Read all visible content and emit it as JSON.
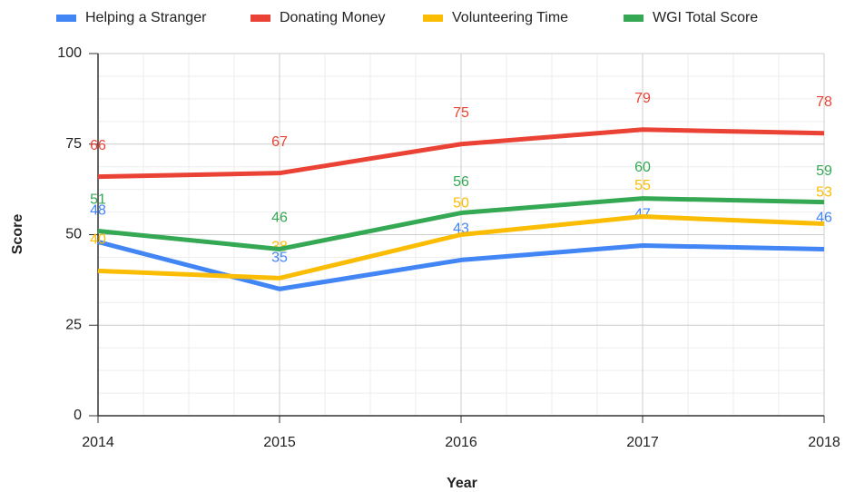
{
  "chart_data": {
    "type": "line",
    "x": [
      2014,
      2015,
      2016,
      2017,
      2018
    ],
    "series": [
      {
        "name": "Helping a Stranger",
        "color": "#4285f4",
        "values": [
          48,
          35,
          43,
          47,
          46
        ]
      },
      {
        "name": "Donating Money",
        "color": "#ea4335",
        "values": [
          66,
          67,
          75,
          79,
          78
        ]
      },
      {
        "name": "Volunteering Time",
        "color": "#fbbc04",
        "values": [
          40,
          38,
          50,
          55,
          53
        ]
      },
      {
        "name": "WGI Total Score",
        "color": "#34a853",
        "values": [
          51,
          46,
          56,
          60,
          59
        ]
      }
    ],
    "xlabel": "Year",
    "ylabel": "Score",
    "xlim": [
      2014,
      2018
    ],
    "xticks": [
      2014,
      2015,
      2016,
      2017,
      2018
    ],
    "ylim": [
      0,
      100
    ],
    "yticks": [
      0,
      25,
      50,
      75,
      100
    ],
    "grid": true,
    "legend": "top"
  }
}
